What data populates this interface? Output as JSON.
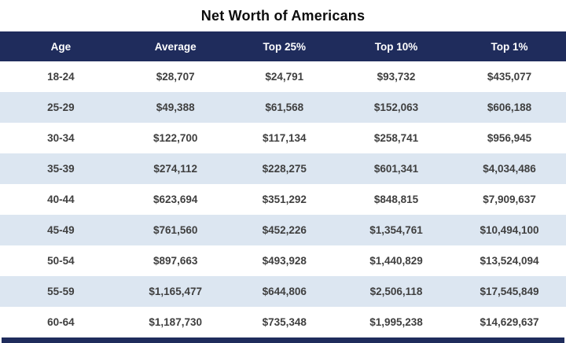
{
  "title": "Net Worth of Americans",
  "colors": {
    "header_bg": "#1f2c5c",
    "band_bg": "#dce6f1",
    "header_text": "#ffffff",
    "cell_text": "#3f3f3f",
    "title_text": "#0d0d0d"
  },
  "chart_data": {
    "type": "table",
    "title": "Net Worth of Americans",
    "columns": [
      "Age",
      "Average",
      "Top 25%",
      "Top 10%",
      "Top 1%"
    ],
    "rows": [
      [
        "18-24",
        "$28,707",
        "$24,791",
        "$93,732",
        "$435,077"
      ],
      [
        "25-29",
        "$49,388",
        "$61,568",
        "$152,063",
        "$606,188"
      ],
      [
        "30-34",
        "$122,700",
        "$117,134",
        "$258,741",
        "$956,945"
      ],
      [
        "35-39",
        "$274,112",
        "$228,275",
        "$601,341",
        "$4,034,486"
      ],
      [
        "40-44",
        "$623,694",
        "$351,292",
        "$848,815",
        "$7,909,637"
      ],
      [
        "45-49",
        "$761,560",
        "$452,226",
        "$1,354,761",
        "$10,494,100"
      ],
      [
        "50-54",
        "$897,663",
        "$493,928",
        "$1,440,829",
        "$13,524,094"
      ],
      [
        "55-59",
        "$1,165,477",
        "$644,806",
        "$2,506,118",
        "$17,545,849"
      ],
      [
        "60-64",
        "$1,187,730",
        "$735,348",
        "$1,995,238",
        "$14,629,637"
      ]
    ]
  }
}
